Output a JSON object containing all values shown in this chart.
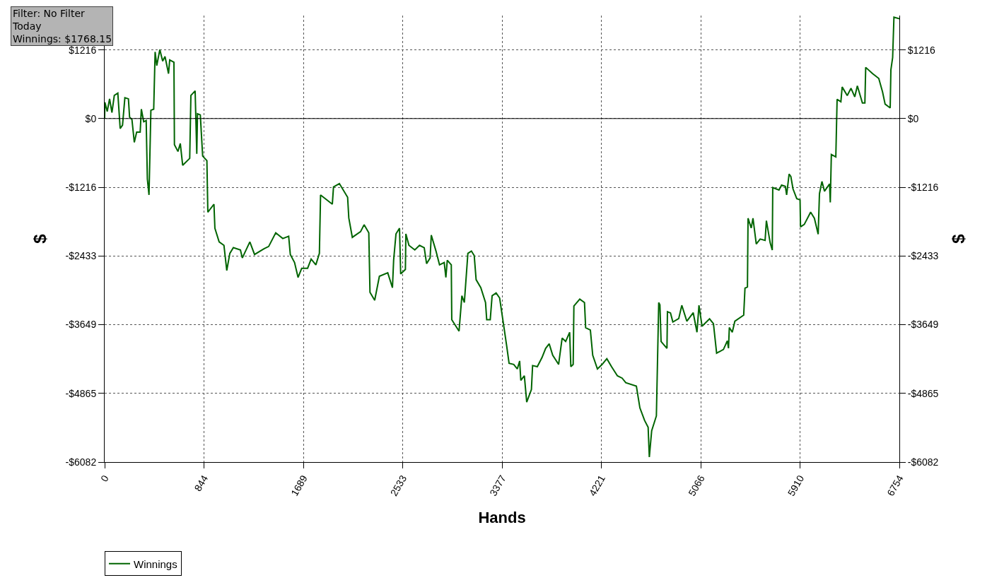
{
  "chart_data": {
    "type": "line",
    "xlabel": "Hands",
    "ylabel": "$",
    "y2label": "$",
    "annotations": [
      "Filter: No Filter\nToday\nWinnings: $1768.15"
    ],
    "x": [
      0,
      2,
      22,
      42,
      62,
      82,
      112,
      132,
      152,
      172,
      202,
      212,
      232,
      252,
      272,
      302,
      312,
      332,
      353,
      363,
      377,
      393,
      417,
      429,
      443,
      469,
      493,
      513,
      543,
      553,
      589,
      593,
      623,
      643,
      663,
      723,
      733,
      769,
      783,
      789,
      813,
      833,
      869,
      877,
      929,
      937,
      973,
      1014,
      1038,
      1064,
      1094,
      1154,
      1170,
      1234,
      1274,
      1354,
      1394,
      1454,
      1514,
      1564,
      1578,
      1614,
      1644,
      1675,
      1725,
      1755,
      1795,
      1825,
      1835,
      1935,
      1945,
      1995,
      2065,
      2075,
      2105,
      2175,
      2205,
      2245,
      2255,
      2295,
      2335,
      2406,
      2446,
      2456,
      2476,
      2506,
      2516,
      2556,
      2560,
      2586,
      2636,
      2676,
      2716,
      2736,
      2766,
      2776,
      2816,
      2846,
      2886,
      2900,
      2912,
      2946,
      2950,
      3012,
      3036,
      3057,
      3087,
      3117,
      3141,
      3157,
      3197,
      3237,
      3247,
      3277,
      3293,
      3327,
      3357,
      3397,
      3417,
      3437,
      3477,
      3507,
      3527,
      3537,
      3567,
      3587,
      3627,
      3637,
      3677,
      3717,
      3748,
      3778,
      3808,
      3858,
      3888,
      3918,
      3952,
      3962,
      3982,
      3988,
      4038,
      4078,
      4088,
      4128,
      4148,
      4188,
      4228,
      4268,
      4308,
      4358,
      4398,
      4429,
      4519,
      4549,
      4589,
      4619,
      4629,
      4649,
      4689,
      4709,
      4719,
      4729,
      4779,
      4783,
      4809,
      4829,
      4879,
      4905,
      4948,
      5002,
      5034,
      5051,
      5077,
      5141,
      5174,
      5201,
      5259,
      5292,
      5302,
      5309,
      5334,
      5356,
      5431,
      5442,
      5463,
      5468,
      5495,
      5510,
      5538,
      5571,
      5613,
      5624,
      5656,
      5674,
      5678,
      5731,
      5753,
      5785,
      5796,
      5817,
      5832,
      5850,
      5882,
      5910,
      5914,
      5946,
      6000,
      6032,
      6064,
      6075,
      6096,
      6118,
      6161,
      6167,
      6176,
      6214,
      6225,
      6257,
      6268,
      6311,
      6343,
      6375,
      6397,
      6440,
      6461,
      6468,
      6525,
      6579,
      6611,
      6633,
      6676,
      6682,
      6697,
      6708,
      6754
    ],
    "series": [
      {
        "name": "Winnings",
        "color": "#006400",
        "values": [
          0,
          288,
          126,
          349,
          106,
          410,
          450,
          -178,
          -117,
          369,
          349,
          25,
          -16,
          -421,
          -239,
          -239,
          166,
          -57,
          -36,
          -1070,
          -1353,
          146,
          166,
          1180,
          937,
          1220,
          1018,
          1099,
          795,
          1038,
          997,
          -462,
          -583,
          -442,
          -827,
          -705,
          410,
          491,
          -624,
          85,
          65,
          -664,
          -745,
          -1657,
          -1516,
          -1941,
          -2184,
          -2245,
          -2691,
          -2387,
          -2286,
          -2326,
          -2468,
          -2184,
          -2407,
          -2306,
          -2265,
          -2022,
          -2124,
          -2083,
          -2407,
          -2549,
          -2813,
          -2650,
          -2650,
          -2488,
          -2590,
          -2387,
          -1353,
          -1516,
          -1212,
          -1151,
          -1394,
          -1759,
          -2103,
          -2002,
          -1880,
          -2022,
          -3076,
          -3218,
          -2792,
          -2731,
          -2995,
          -2509,
          -2042,
          -1941,
          -2752,
          -2671,
          -2042,
          -2245,
          -2326,
          -2245,
          -2286,
          -2569,
          -2468,
          -2063,
          -2346,
          -2590,
          -2549,
          -2812,
          -2508,
          -2590,
          -3562,
          -3765,
          -3137,
          -3258,
          -2387,
          -2346,
          -2427,
          -2853,
          -2995,
          -3258,
          -3562,
          -3562,
          -3137,
          -3088,
          -3177,
          -3745,
          -4028,
          -4332,
          -4353,
          -4434,
          -4292,
          -4636,
          -4555,
          -5021,
          -4798,
          -4373,
          -4393,
          -4231,
          -4069,
          -3988,
          -4190,
          -4353,
          -3887,
          -3947,
          -3785,
          -4393,
          -4353,
          -3319,
          -3198,
          -3258,
          -3704,
          -3745,
          -4190,
          -4434,
          -4353,
          -4251,
          -4393,
          -4555,
          -4596,
          -4677,
          -4738,
          -5123,
          -5346,
          -5467,
          -5994,
          -5528,
          -5265,
          -3258,
          -3299,
          -3947,
          -4069,
          -3420,
          -3441,
          -3603,
          -3542,
          -3307,
          -3589,
          -3437,
          -3784,
          -3307,
          -3676,
          -3546,
          -3632,
          -4154,
          -4088,
          -3936,
          -4067,
          -3698,
          -3784,
          -3589,
          -3481,
          -3003,
          -2981,
          -1765,
          -1939,
          -1765,
          -2221,
          -2134,
          -2156,
          -1808,
          -2199,
          -2330,
          -1222,
          -1265,
          -1179,
          -1200,
          -1352,
          -983,
          -1027,
          -1244,
          -1418,
          -1439,
          -1917,
          -1874,
          -1656,
          -1765,
          -2047,
          -1331,
          -1114,
          -1287,
          -1157,
          -1483,
          -636,
          -679,
          341,
          298,
          559,
          407,
          537,
          385,
          580,
          276,
          276,
          906,
          797,
          711,
          472,
          255,
          189,
          863,
          1080,
          1796,
          1768.15
        ]
      }
    ],
    "xlim": [
      0,
      6754
    ],
    "xticks": [
      0,
      844,
      1689,
      2533,
      3377,
      4221,
      5066,
      5910,
      6754
    ],
    "ylim": [
      -6082,
      1824
    ],
    "yticks": [
      {
        "value": -6082,
        "label": "-$6082"
      },
      {
        "value": -4865,
        "label": "-$4865"
      },
      {
        "value": -3649,
        "label": "-$3649"
      },
      {
        "value": -2433,
        "label": "-$2433"
      },
      {
        "value": -1216,
        "label": "-$1216"
      },
      {
        "value": 0,
        "label": "$0"
      },
      {
        "value": 1216,
        "label": "$1216"
      }
    ],
    "y2lim": [
      -6082,
      1824
    ],
    "y2ticks": [
      {
        "value": -6082,
        "label": "-$6082"
      },
      {
        "value": -4865,
        "label": "-$4865"
      },
      {
        "value": -3649,
        "label": "-$3649"
      },
      {
        "value": -2433,
        "label": "-$2433"
      },
      {
        "value": -1216,
        "label": "-$1216"
      },
      {
        "value": 0,
        "label": "$0"
      },
      {
        "value": 1216,
        "label": "$1216"
      }
    ],
    "ref_lines": [
      {
        "axis": "y",
        "value": 0,
        "color": "#000000",
        "line_style": "solid"
      }
    ],
    "grid": true,
    "legend": "bottom left",
    "marker": "none",
    "line_style": "solid"
  }
}
